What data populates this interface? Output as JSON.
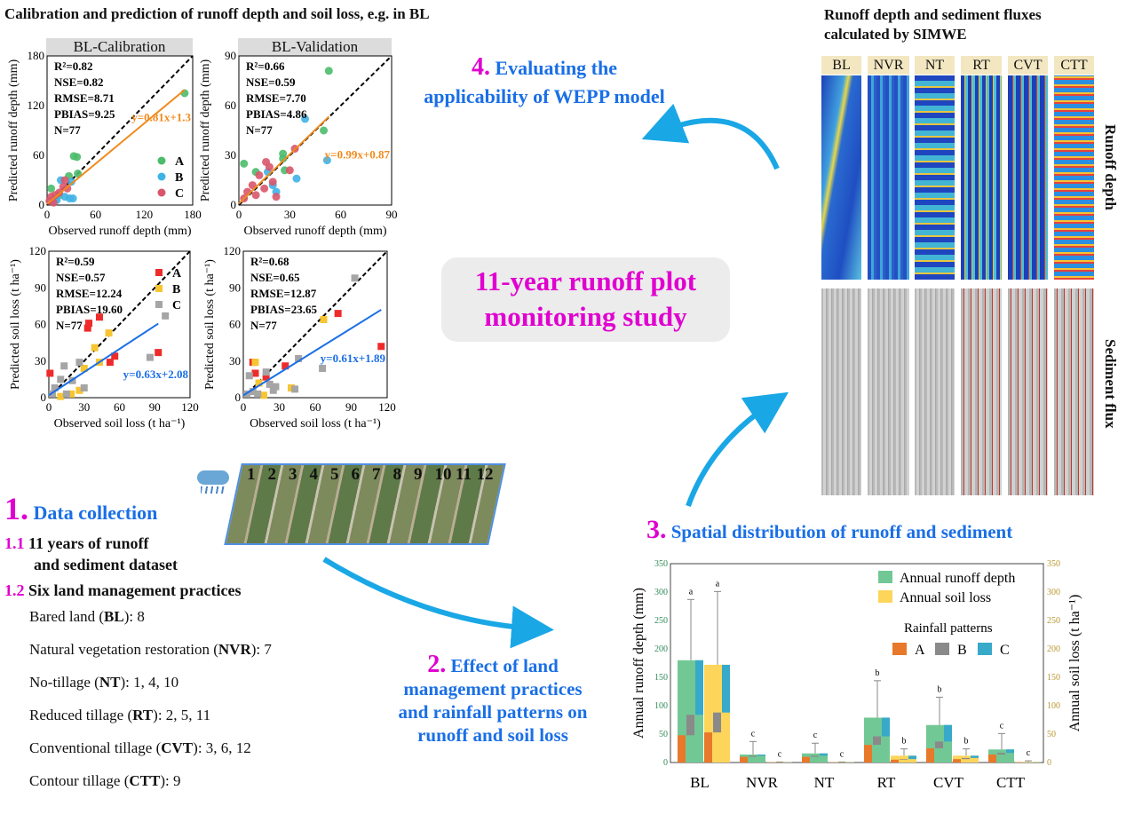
{
  "title": "Calibration and prediction of runoff depth and soil loss, e.g. in BL",
  "scatter_panels": [
    {
      "header": "BL-Calibration",
      "xlabel": "Observed runoff depth (mm)",
      "ylabel": "Predicted runoff depth (mm)",
      "max": 180,
      "ticks": [
        0,
        60,
        120,
        180
      ],
      "stats": [
        "R²=0.82",
        "NSE=0.82",
        "RMSE=8.71",
        "PBIAS=9.25",
        "N=77"
      ],
      "fit": {
        "label": "y=0.81x+1.3",
        "slope": 0.81,
        "intercept": 1.3,
        "xend": 170,
        "color": "#f08a1c"
      },
      "marker": "circle",
      "legend": [
        "A",
        "B",
        "C"
      ],
      "series": {
        "A": [
          [
            170,
            135
          ],
          [
            33,
            59
          ],
          [
            37,
            58
          ],
          [
            27,
            35
          ],
          [
            38,
            38
          ],
          [
            5,
            20
          ],
          [
            15,
            12
          ],
          [
            10,
            8
          ]
        ],
        "B": [
          [
            17,
            30
          ],
          [
            28,
            8
          ],
          [
            32,
            8
          ],
          [
            22,
            10
          ],
          [
            30,
            28
          ],
          [
            8,
            5
          ],
          [
            12,
            6
          ]
        ],
        "C": [
          [
            22,
            30
          ],
          [
            20,
            22
          ],
          [
            15,
            15
          ],
          [
            10,
            12
          ],
          [
            5,
            10
          ],
          [
            3,
            5
          ],
          [
            25,
            20
          ],
          [
            8,
            3
          ]
        ]
      }
    },
    {
      "header": "BL-Validation",
      "xlabel": "Observed runoff depth (mm)",
      "ylabel": "Predicted runoff depth (mm)",
      "max": 90,
      "ticks": [
        0,
        30,
        60,
        90
      ],
      "stats": [
        "R²=0.66",
        "NSE=0.59",
        "RMSE=7.70",
        "PBIAS=4.86",
        "N=77"
      ],
      "fit": {
        "label": "y=0.99x+0.87",
        "slope": 0.99,
        "intercept": 0.87,
        "xend": 53,
        "color": "#f08a1c"
      },
      "marker": "circle",
      "legend": [],
      "series": {
        "A": [
          [
            53,
            81
          ],
          [
            3,
            25
          ],
          [
            10,
            20
          ],
          [
            26,
            31
          ],
          [
            26,
            28
          ],
          [
            27,
            21
          ],
          [
            50,
            45
          ]
        ],
        "B": [
          [
            39,
            52
          ],
          [
            52,
            27
          ],
          [
            34,
            16
          ],
          [
            17,
            20
          ],
          [
            22,
            8
          ],
          [
            20,
            12
          ]
        ],
        "C": [
          [
            33,
            34
          ],
          [
            30,
            21
          ],
          [
            16,
            26
          ],
          [
            18,
            23
          ],
          [
            12,
            18
          ],
          [
            20,
            14
          ],
          [
            8,
            12
          ],
          [
            5,
            8
          ],
          [
            3,
            4
          ],
          [
            10,
            6
          ],
          [
            22,
            5
          ],
          [
            15,
            10
          ]
        ]
      }
    },
    {
      "header": "",
      "xlabel": "Observed soil loss (t ha⁻¹)",
      "ylabel": "Predicted soil loss (t ha⁻¹)",
      "max": 120,
      "ticks": [
        0,
        30,
        60,
        90,
        120
      ],
      "stats": [
        "R²=0.59",
        "NSE=0.57",
        "RMSE=12.24",
        "PBIAS=19.60",
        "N=77"
      ],
      "fit": {
        "label": "y=0.63x+2.08",
        "slope": 0.63,
        "intercept": 2.08,
        "xend": 93,
        "color": "#1a6fe6"
      },
      "marker": "square",
      "legend": [
        "A",
        "B",
        "C"
      ],
      "series": {
        "A": [
          [
            1,
            20
          ],
          [
            33,
            57
          ],
          [
            34,
            61
          ],
          [
            43,
            66
          ],
          [
            52,
            29
          ],
          [
            56,
            34
          ],
          [
            93,
            37
          ]
        ],
        "B": [
          [
            39,
            41
          ],
          [
            51,
            53
          ],
          [
            43,
            29
          ],
          [
            30,
            24
          ],
          [
            26,
            6
          ],
          [
            19,
            3
          ],
          [
            10,
            1
          ]
        ],
        "C": [
          [
            99,
            67
          ],
          [
            86,
            33
          ],
          [
            13,
            26
          ],
          [
            26,
            29
          ],
          [
            10,
            15
          ],
          [
            20,
            14
          ],
          [
            30,
            8
          ],
          [
            5,
            8
          ],
          [
            15,
            3
          ],
          [
            3,
            3
          ]
        ]
      }
    },
    {
      "header": "",
      "xlabel": "Observed soil loss (t ha⁻¹)",
      "ylabel": "Predicted soil loss (t ha⁻¹)",
      "max": 120,
      "ticks": [
        0,
        30,
        60,
        90,
        120
      ],
      "stats": [
        "R²=0.68",
        "NSE=0.65",
        "RMSE=12.87",
        "PBIAS=23.65",
        "N=77"
      ],
      "fit": {
        "label": "y=0.61x+1.89",
        "slope": 0.61,
        "intercept": 1.89,
        "xend": 115,
        "color": "#1a6fe6"
      },
      "marker": "square",
      "legend": [],
      "series": {
        "A": [
          [
            8,
            29
          ],
          [
            10,
            20
          ],
          [
            19,
            17
          ],
          [
            35,
            26
          ],
          [
            79,
            69
          ],
          [
            115,
            42
          ]
        ],
        "B": [
          [
            10,
            29
          ],
          [
            67,
            64
          ],
          [
            40,
            8
          ],
          [
            13,
            12
          ],
          [
            17,
            2
          ]
        ],
        "C": [
          [
            93,
            98
          ],
          [
            46,
            32
          ],
          [
            66,
            24
          ],
          [
            43,
            7
          ],
          [
            27,
            9
          ],
          [
            19,
            21
          ],
          [
            5,
            18
          ],
          [
            22,
            11
          ],
          [
            25,
            6
          ],
          [
            8,
            5
          ],
          [
            3,
            3
          ],
          [
            12,
            3
          ]
        ]
      }
    }
  ],
  "colors": {
    "circle": {
      "A": "#4cbb6c",
      "B": "#3fb3e6",
      "C": "#d9566a"
    },
    "square": {
      "A": "#ee2b2b",
      "B": "#f7c531",
      "C": "#a5a5a5"
    },
    "magenta": "#e000d0",
    "blue": "#1a6fe6",
    "arrow": "#1aa7e6"
  },
  "center_box": {
    "line1": "11-year runoff plot",
    "line2": "monitoring study"
  },
  "step4": {
    "num": "4.",
    "line1": "Evaluating the",
    "line2": "applicability of WEPP model"
  },
  "simwe": {
    "title1": "Runoff depth and sediment fluxes",
    "title2": "calculated by SIMWE",
    "labels": [
      "BL",
      "NVR",
      "NT",
      "RT",
      "CVT",
      "CTT"
    ],
    "row1": "Runoff depth",
    "row2": "Sediment flux"
  },
  "step1": {
    "num": "1.",
    "title": "Data collection",
    "s11_num": "1.1",
    "s11_a": "11 years of runoff",
    "s11_b": "and sediment dataset",
    "s12_num": "1.2",
    "s12": "Six land management practices",
    "items": [
      {
        "pre": "Bared land (",
        "abbr": "BL",
        "post": "): 8"
      },
      {
        "pre": "Natural vegetation restoration (",
        "abbr": "NVR",
        "post": "): 7"
      },
      {
        "pre": "No-tillage (",
        "abbr": "NT",
        "post": "): 1, 4, 10"
      },
      {
        "pre": "Reduced tillage (",
        "abbr": "RT",
        "post": "): 2, 5, 11"
      },
      {
        "pre": "Conventional tillage (",
        "abbr": "CVT",
        "post": "): 3, 6, 12"
      },
      {
        "pre": "Contour tillage (",
        "abbr": "CTT",
        "post": "): 9"
      }
    ]
  },
  "plots": [
    "1",
    "2",
    "3",
    "4",
    "5",
    "6",
    "7",
    "8",
    "9",
    "10",
    "11",
    "12"
  ],
  "step2": {
    "num": "2.",
    "line1": "Effect of land",
    "line2": "management practices",
    "line3": "and rainfall patterns on",
    "line4": "runoff and soil loss"
  },
  "step3": {
    "num": "3.",
    "title": "Spatial distribution of runoff and sediment"
  },
  "chart_data": {
    "type": "bar",
    "categories": [
      "BL",
      "NVR",
      "NT",
      "RT",
      "CVT",
      "CTT"
    ],
    "ylabel": "Annual runoff depth (mm)",
    "y2label": "Annual soil loss (t ha⁻¹)",
    "ylim": [
      0,
      350
    ],
    "y2lim": [
      0,
      350
    ],
    "ticks": [
      0,
      50,
      100,
      150,
      200,
      250,
      300,
      350
    ],
    "legend": {
      "runoff": "Annual runoff depth",
      "soil": "Annual soil loss",
      "patterns_title": "Rainfall patterns",
      "patterns": [
        "A",
        "B",
        "C"
      ]
    },
    "series": [
      {
        "name": "Annual runoff depth",
        "color": "#72c895",
        "values": [
          180,
          14,
          16,
          79,
          66,
          23
        ],
        "A": [
          48,
          10,
          10,
          31,
          25,
          14
        ],
        "B": [
          84,
          12,
          12,
          46,
          37,
          17
        ],
        "err": [
          287,
          37,
          34,
          144,
          115,
          51
        ],
        "letters": [
          "a",
          "c",
          "c",
          "b",
          "b",
          "c"
        ]
      },
      {
        "name": "Annual soil loss",
        "color": "#fcd55a",
        "values": [
          172,
          0.5,
          0.5,
          12,
          12,
          1
        ],
        "A": [
          53,
          0.2,
          0.2,
          5,
          6,
          0.4
        ],
        "B": [
          88,
          0.3,
          0.3,
          6,
          8,
          0.6
        ],
        "err": [
          301,
          1,
          1,
          24,
          24,
          3
        ],
        "letters": [
          "a",
          "c",
          "c",
          "b",
          "b",
          "c"
        ]
      }
    ],
    "pattern_colors": {
      "A": "#e8782a",
      "B": "#8a8a8a",
      "C": "#37a9c9"
    }
  }
}
